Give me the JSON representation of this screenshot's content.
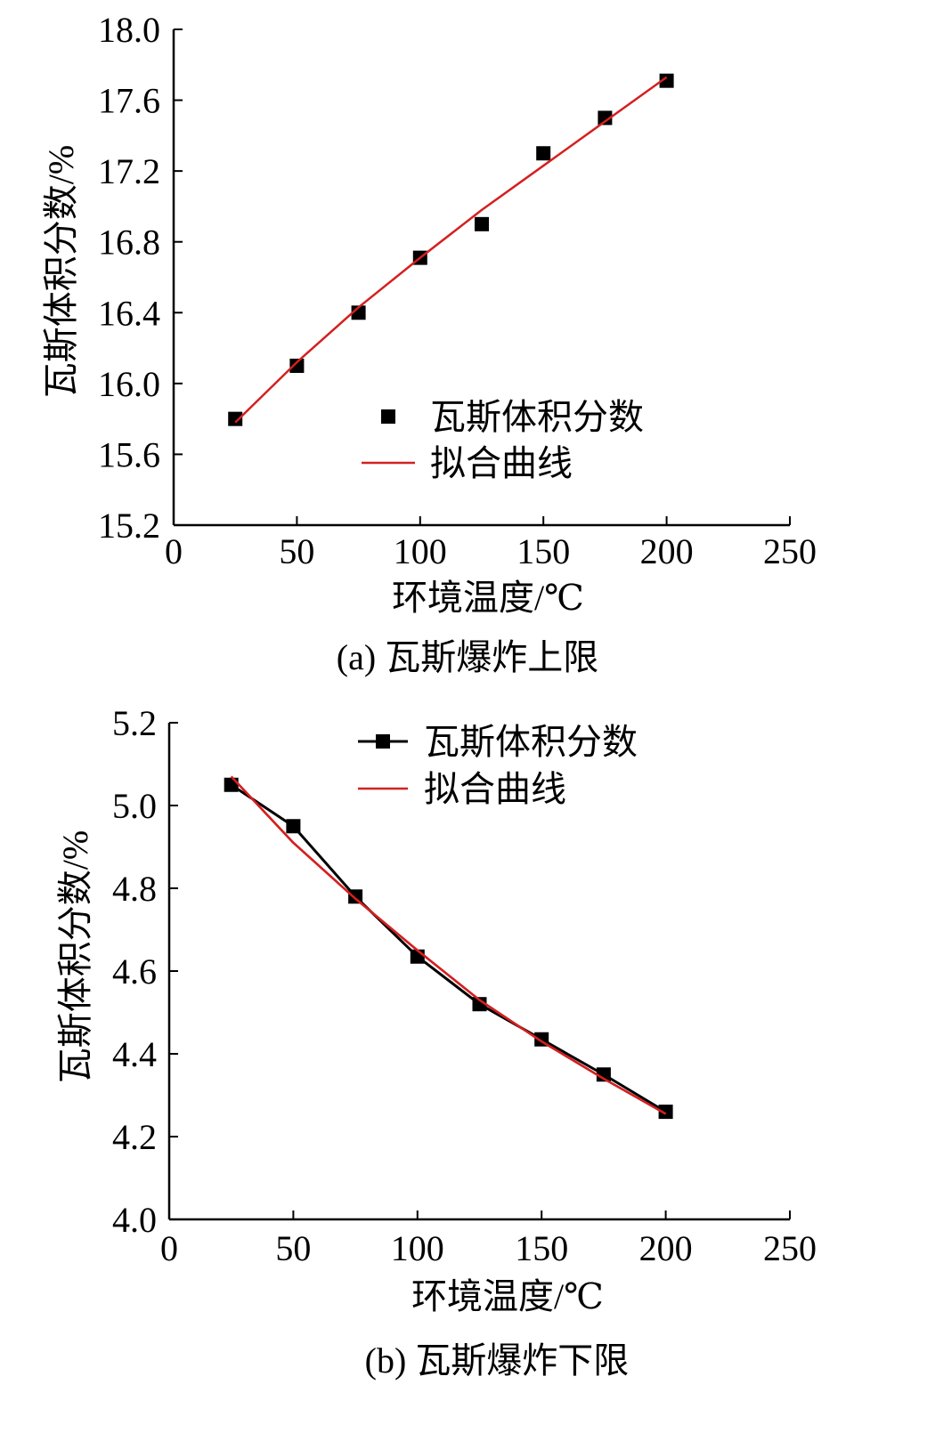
{
  "chart_data": [
    {
      "type": "scatter",
      "caption": "(a) 瓦斯爆炸上限",
      "xlabel": "环境温度/℃",
      "ylabel": "瓦斯体积分数/%",
      "xlim": [
        0,
        250
      ],
      "ylim": [
        15.2,
        18.0
      ],
      "xticks": [
        "0",
        "50",
        "100",
        "150",
        "200",
        "250"
      ],
      "yticks": [
        "15.2",
        "15.6",
        "16.0",
        "16.4",
        "16.8",
        "17.2",
        "17.6",
        "18.0"
      ],
      "grid": false,
      "legend_position": "center-right",
      "series": [
        {
          "name": "瓦斯体积分数",
          "kind": "markers",
          "color": "#000000",
          "x": [
            25,
            50,
            75,
            100,
            125,
            150,
            175,
            200
          ],
          "y": [
            15.8,
            16.1,
            16.4,
            16.71,
            16.9,
            17.3,
            17.5,
            17.71
          ]
        },
        {
          "name": "拟合曲线",
          "kind": "line",
          "color": "#d42020",
          "x": [
            25,
            50,
            75,
            100,
            125,
            150,
            175,
            200
          ],
          "y": [
            15.78,
            16.12,
            16.43,
            16.71,
            16.98,
            17.23,
            17.48,
            17.73
          ]
        }
      ]
    },
    {
      "type": "line",
      "caption": "(b) 瓦斯爆炸下限",
      "xlabel": "环境温度/℃",
      "ylabel": "瓦斯体积分数/%",
      "xlim": [
        0,
        250
      ],
      "ylim": [
        4.0,
        5.2
      ],
      "xticks": [
        "0",
        "50",
        "100",
        "150",
        "200",
        "250"
      ],
      "yticks": [
        "4.0",
        "4.2",
        "4.4",
        "4.6",
        "4.8",
        "5.0",
        "5.2"
      ],
      "grid": false,
      "legend_position": "top-center",
      "series": [
        {
          "name": "瓦斯体积分数",
          "kind": "line-markers",
          "color": "#000000",
          "x": [
            25,
            50,
            75,
            100,
            125,
            150,
            175,
            200
          ],
          "y": [
            5.05,
            4.95,
            4.78,
            4.635,
            4.52,
            4.435,
            4.35,
            4.26
          ]
        },
        {
          "name": "拟合曲线",
          "kind": "line",
          "color": "#d42020",
          "x": [
            25,
            50,
            75,
            100,
            125,
            150,
            175,
            200
          ],
          "y": [
            5.07,
            4.91,
            4.775,
            4.65,
            4.53,
            4.43,
            4.34,
            4.255
          ]
        }
      ]
    }
  ]
}
